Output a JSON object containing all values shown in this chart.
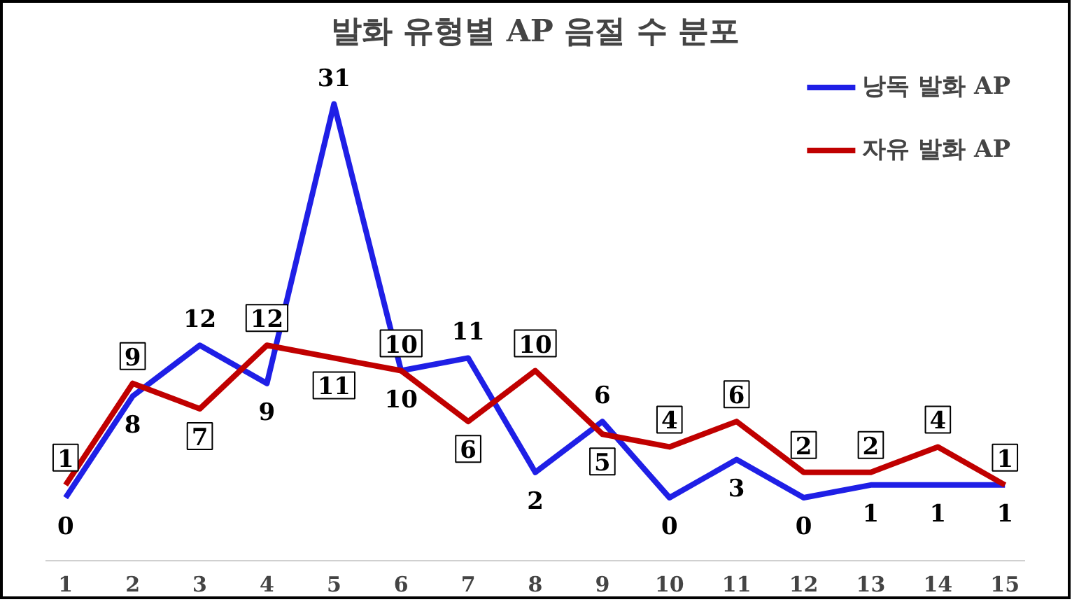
{
  "chart_data": {
    "type": "line",
    "title": "발화 유형별 AP 음절 수 분포",
    "x": [
      1,
      2,
      3,
      4,
      5,
      6,
      7,
      8,
      9,
      10,
      11,
      12,
      13,
      14,
      15
    ],
    "xlim": [
      0.7,
      15.3
    ],
    "xticks": [
      1,
      2,
      3,
      4,
      5,
      6,
      7,
      8,
      9,
      10,
      11,
      12,
      13,
      14,
      15
    ],
    "series": [
      {
        "name": "낭독 발화 AP",
        "color": "#1f1fe6",
        "values": [
          0,
          8,
          12,
          9,
          31,
          10,
          11,
          2,
          6,
          0,
          3,
          0,
          1,
          1,
          1
        ]
      },
      {
        "name": "자유 발화 AP",
        "color": "#c00000",
        "values": [
          1,
          9,
          7,
          12,
          11,
          10,
          6,
          10,
          5,
          4,
          6,
          2,
          2,
          4,
          1
        ]
      }
    ],
    "data_labels": true,
    "legend": "top right",
    "grid": false,
    "tick_labels": "x",
    "marker": "none",
    "line_style": "solid"
  }
}
